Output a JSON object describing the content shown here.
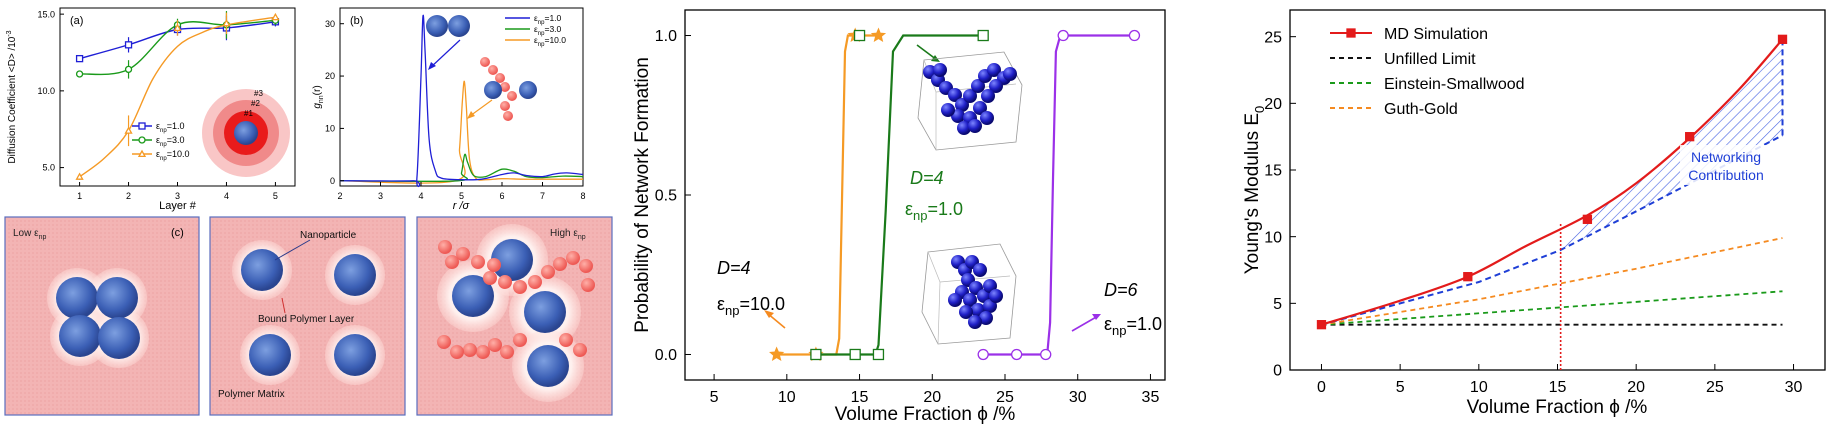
{
  "chart_data": [
    {
      "type": "line",
      "panel_label": "(a)",
      "xlabel": "Layer #",
      "ylabel": "Diffusion Coefficient <D> /10",
      "ylabel_sup": "-3",
      "x": [
        1,
        2,
        3,
        4,
        5
      ],
      "xlim": [
        0.6,
        5.4
      ],
      "ylim": [
        3.8,
        15.4
      ],
      "xticks": [
        "1",
        "2",
        "3",
        "4",
        "5"
      ],
      "yticks": [
        "5.0",
        "10.0",
        "15.0"
      ],
      "legend_entries": [
        "ε=1.0",
        "ε=3.0",
        "ε=10.0"
      ],
      "legend_sub": "np",
      "legend_placement": "bottom-center",
      "series": [
        {
          "name": "ε=1.0",
          "color": "#1f1fd6",
          "marker": "square",
          "values": [
            12.1,
            13.0,
            14.0,
            14.1,
            14.5
          ]
        },
        {
          "name": "ε=3.0",
          "color": "#1a9a1a",
          "marker": "circle",
          "values": [
            11.1,
            11.4,
            14.3,
            14.3,
            14.6
          ]
        },
        {
          "name": "ε=10.0",
          "color": "#f59a25",
          "marker": "triangle",
          "values": [
            4.4,
            7.4,
            14.1,
            14.4,
            14.8
          ]
        }
      ],
      "inset_labels": [
        "#1",
        "#2",
        "#3"
      ]
    },
    {
      "type": "line",
      "panel_label": "(b)",
      "xlabel": "r /σ",
      "ylabel": "g",
      "ylabel_sub": "nn",
      "ylabel_tail": "(r)",
      "xlim": [
        2,
        8
      ],
      "ylim": [
        -1,
        33
      ],
      "xticks": [
        "2",
        "3",
        "4",
        "5",
        "6",
        "7",
        "8"
      ],
      "yticks": [
        "0",
        "10",
        "20",
        "30"
      ],
      "legend_entries": [
        "ε=1.0",
        "ε=3.0",
        "ε=10.0"
      ],
      "legend_sub": "np",
      "legend_placement": "top-right",
      "series": [
        {
          "name": "ε=1.0",
          "color": "#1f1fd6",
          "points": [
            [
              2.0,
              0
            ],
            [
              3.8,
              0
            ],
            [
              3.9,
              0.5
            ],
            [
              4.0,
              20
            ],
            [
              4.05,
              31.5
            ],
            [
              4.1,
              25
            ],
            [
              4.2,
              8
            ],
            [
              4.35,
              2
            ],
            [
              4.5,
              0.5
            ],
            [
              5.0,
              0.2
            ],
            [
              5.5,
              0.3
            ],
            [
              6.0,
              1.2
            ],
            [
              6.3,
              1.5
            ],
            [
              6.6,
              1.0
            ],
            [
              7.0,
              0.8
            ],
            [
              7.3,
              1.3
            ],
            [
              7.6,
              1.5
            ],
            [
              8.0,
              1.2
            ]
          ]
        },
        {
          "name": "ε=3.0",
          "color": "#1a9a1a",
          "points": [
            [
              2.0,
              0
            ],
            [
              4.9,
              0
            ],
            [
              5.0,
              1.5
            ],
            [
              5.08,
              5.0
            ],
            [
              5.15,
              3.5
            ],
            [
              5.3,
              1.0
            ],
            [
              5.6,
              0.8
            ],
            [
              6.0,
              2.2
            ],
            [
              6.3,
              1.8
            ],
            [
              6.6,
              0.8
            ],
            [
              7.0,
              0.6
            ],
            [
              7.5,
              0.9
            ],
            [
              8.0,
              0.8
            ]
          ]
        },
        {
          "name": "ε=10.0",
          "color": "#f59a25",
          "points": [
            [
              2.0,
              0
            ],
            [
              4.85,
              0
            ],
            [
              4.95,
              6
            ],
            [
              5.02,
              15
            ],
            [
              5.07,
              19
            ],
            [
              5.12,
              14
            ],
            [
              5.2,
              4
            ],
            [
              5.35,
              0.5
            ],
            [
              5.6,
              0.2
            ],
            [
              6.0,
              0.4
            ],
            [
              6.5,
              0.3
            ],
            [
              7.0,
              0.3
            ],
            [
              8.0,
              0.3
            ]
          ]
        }
      ]
    },
    {
      "type": "line",
      "xlabel": "Volume Fraction ϕ /%",
      "ylabel": "Probability of Network Formation",
      "xlim": [
        3,
        36
      ],
      "ylim": [
        -0.08,
        1.08
      ],
      "xticks": [
        "5",
        "10",
        "15",
        "20",
        "25",
        "30",
        "35"
      ],
      "yticks": [
        "0.0",
        "0.5",
        "1.0"
      ],
      "series": [
        {
          "color": "#f59a25",
          "marker": "star",
          "markers": [
            [
              9.3,
              0
            ],
            [
              12,
              0
            ],
            [
              14.7,
              1
            ],
            [
              16.3,
              1
            ]
          ],
          "points": [
            [
              9.3,
              0
            ],
            [
              13.4,
              0
            ],
            [
              13.6,
              0.05
            ],
            [
              13.8,
              0.5
            ],
            [
              14.0,
              0.95
            ],
            [
              14.2,
              1.0
            ],
            [
              16.3,
              1.0
            ]
          ]
        },
        {
          "color": "#1a7a1a",
          "marker": "square",
          "markers": [
            [
              12,
              0
            ],
            [
              14.7,
              0
            ],
            [
              16.3,
              0
            ],
            [
              15.0,
              1
            ],
            [
              23.5,
              1
            ]
          ],
          "points": [
            [
              12.0,
              0
            ],
            [
              16.1,
              0
            ],
            [
              16.3,
              0.03
            ],
            [
              16.8,
              0.45
            ],
            [
              17.3,
              0.95
            ],
            [
              18.0,
              1.0
            ],
            [
              23.5,
              1.0
            ]
          ]
        },
        {
          "color": "#9b30e8",
          "marker": "circle",
          "markers": [
            [
              23.5,
              0
            ],
            [
              25.8,
              0
            ],
            [
              27.8,
              0
            ],
            [
              29.0,
              1
            ],
            [
              33.9,
              1
            ]
          ],
          "points": [
            [
              23.5,
              0
            ],
            [
              27.9,
              0
            ],
            [
              28.1,
              0.1
            ],
            [
              28.3,
              0.55
            ],
            [
              28.5,
              0.95
            ],
            [
              28.8,
              1.0
            ],
            [
              33.9,
              1.0
            ]
          ]
        }
      ],
      "annotations": [
        {
          "D": "D=4",
          "eps": "ε",
          "sub": "np",
          "val": "=10.0",
          "color": "#000000"
        },
        {
          "D": "D=4",
          "eps": "ε",
          "sub": "np",
          "val": "=1.0",
          "color": "#1a7a1a"
        },
        {
          "D": "D=6",
          "eps": "ε",
          "sub": "np",
          "val": "=1.0",
          "color": "#000000"
        }
      ]
    },
    {
      "type": "line",
      "xlabel": "Volume Fraction ϕ /%",
      "ylabel": "Young's Modulus E",
      "ylabel_sub": "0",
      "xlim": [
        -2,
        32
      ],
      "ylim": [
        0,
        27
      ],
      "xticks": [
        "0",
        "5",
        "10",
        "15",
        "20",
        "25",
        "30"
      ],
      "yticks": [
        "0",
        "5",
        "10",
        "15",
        "20",
        "25"
      ],
      "legend_placement": "top-left",
      "series": [
        {
          "name": "MD Simulation",
          "color": "#e31b1b",
          "marker": "square",
          "markers": [
            [
              0,
              3.4
            ],
            [
              9.3,
              7.0
            ],
            [
              16.9,
              11.3
            ],
            [
              23.4,
              17.5
            ],
            [
              29.3,
              24.8
            ]
          ],
          "points": [
            [
              0,
              3.4
            ],
            [
              5,
              5.2
            ],
            [
              9.3,
              7.0
            ],
            [
              13,
              9.3
            ],
            [
              16.9,
              11.6
            ],
            [
              20,
              14.0
            ],
            [
              23.4,
              17.4
            ],
            [
              26.5,
              21.0
            ],
            [
              29.3,
              24.8
            ]
          ]
        },
        {
          "name": "Unfilled Limit",
          "color": "#111111",
          "points": [
            [
              0,
              3.4
            ],
            [
              29.3,
              3.4
            ]
          ]
        },
        {
          "name": "Einstein-Smallwood",
          "color": "#1a9a1a",
          "points": [
            [
              0,
              3.4
            ],
            [
              29.3,
              5.9
            ]
          ]
        },
        {
          "name": "Guth-Gold",
          "color": "#f58a20",
          "points": [
            [
              0,
              3.4
            ],
            [
              10,
              5.3
            ],
            [
              20,
              7.6
            ],
            [
              29.3,
              9.9
            ]
          ]
        }
      ],
      "networking_text": [
        "Networking",
        "Contribution"
      ],
      "extrapolation": {
        "color": "#1f3fd6",
        "points": [
          [
            0,
            3.4
          ],
          [
            10,
            6.6
          ],
          [
            15.2,
            9.0
          ],
          [
            20,
            11.9
          ],
          [
            29.3,
            17.6
          ]
        ]
      },
      "percolation_x": 15.2
    }
  ],
  "schematic": {
    "panel_label": "(c)",
    "left_label": "Low ε",
    "left_label_sub": "np",
    "mid_labels": [
      "Nanoparticle",
      "Bound Polymer Layer",
      "Polymer Matrix"
    ],
    "right_label": "High ε",
    "right_label_sub": "np"
  }
}
